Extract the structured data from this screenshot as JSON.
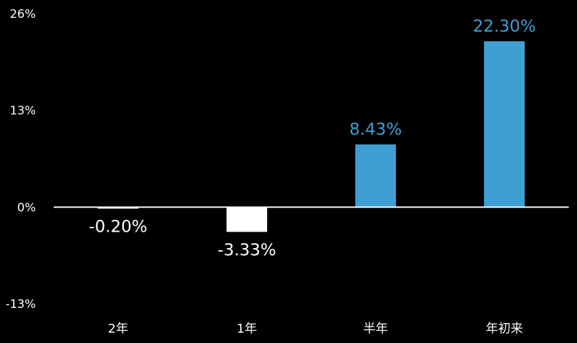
{
  "chart_data": {
    "type": "bar",
    "title": "",
    "xlabel": "",
    "ylabel": "",
    "categories": [
      "2年",
      "1年",
      "半年",
      "年初来"
    ],
    "values": [
      -0.2,
      -3.33,
      8.43,
      22.3
    ],
    "value_labels": [
      "-0.20%",
      "-3.33%",
      "8.43%",
      "22.30%"
    ],
    "bar_colors": [
      "#FFFFFF",
      "#FFFFFF",
      "#3E9FD2",
      "#3E9FD2"
    ],
    "label_colors": [
      "#FFFFFF",
      "#FFFFFF",
      "#3E9FD2",
      "#3E9FD2"
    ],
    "ylim": [
      -13,
      26
    ],
    "yticks": [
      -13,
      0,
      13,
      26
    ],
    "ytick_labels": [
      "-13%",
      "0%",
      "13%",
      "26%"
    ],
    "grid": false,
    "legend": "none",
    "background": "#000000",
    "axis_color": "#FFFFFF",
    "text_color": "#FFFFFF"
  }
}
